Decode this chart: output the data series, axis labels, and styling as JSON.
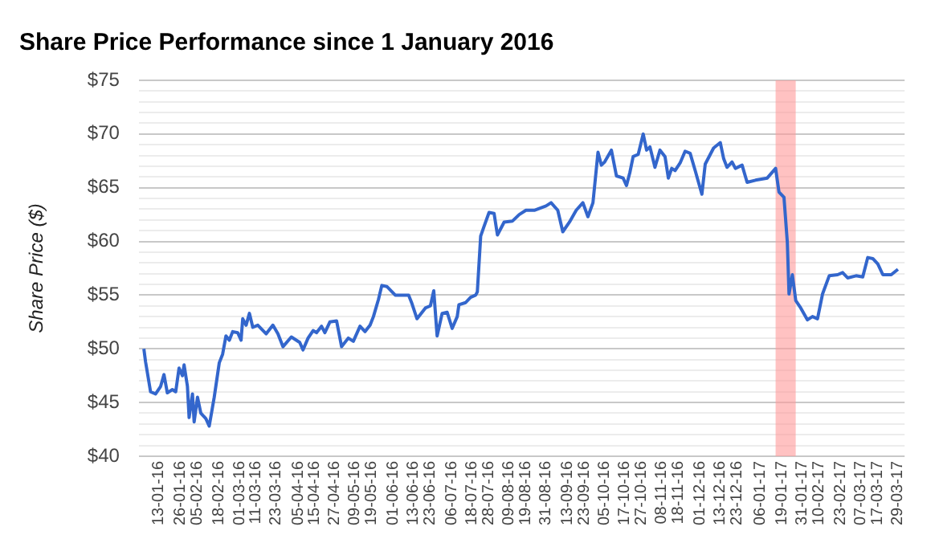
{
  "chart_data": {
    "type": "line",
    "title": "Share Price Performance since 1 January 2016",
    "ylabel": "Share Price ($)",
    "series": [
      {
        "color": "#3366cc",
        "x": [
          "2016-01-04",
          "2016-01-05",
          "2016-01-08",
          "2016-01-11",
          "2016-01-14",
          "2016-01-16",
          "2016-01-18",
          "2016-01-21",
          "2016-01-23",
          "2016-01-25",
          "2016-01-27",
          "2016-01-28",
          "2016-01-30",
          "2016-01-31",
          "2016-02-02",
          "2016-02-03",
          "2016-02-05",
          "2016-02-07",
          "2016-02-10",
          "2016-02-12",
          "2016-02-15",
          "2016-02-18",
          "2016-02-20",
          "2016-02-22",
          "2016-02-24",
          "2016-02-26",
          "2016-02-29",
          "2016-03-02",
          "2016-03-03",
          "2016-03-05",
          "2016-03-07",
          "2016-03-09",
          "2016-03-12",
          "2016-03-17",
          "2016-03-21",
          "2016-03-24",
          "2016-03-27",
          "2016-04-01",
          "2016-04-06",
          "2016-04-08",
          "2016-04-11",
          "2016-04-14",
          "2016-04-16",
          "2016-04-19",
          "2016-04-21",
          "2016-04-24",
          "2016-04-28",
          "2016-05-01",
          "2016-05-05",
          "2016-05-08",
          "2016-05-12",
          "2016-05-15",
          "2016-05-18",
          "2016-05-20",
          "2016-05-23",
          "2016-05-25",
          "2016-05-28",
          "2016-06-02",
          "2016-06-10",
          "2016-06-12",
          "2016-06-15",
          "2016-06-17",
          "2016-06-20",
          "2016-06-23",
          "2016-06-25",
          "2016-06-27",
          "2016-06-30",
          "2016-07-03",
          "2016-07-06",
          "2016-07-09",
          "2016-07-10",
          "2016-07-14",
          "2016-07-17",
          "2016-07-20",
          "2016-07-21",
          "2016-07-23",
          "2016-07-25",
          "2016-07-28",
          "2016-07-31",
          "2016-08-02",
          "2016-08-06",
          "2016-08-11",
          "2016-08-15",
          "2016-08-19",
          "2016-08-24",
          "2016-08-31",
          "2016-09-03",
          "2016-09-07",
          "2016-09-10",
          "2016-09-14",
          "2016-09-18",
          "2016-09-22",
          "2016-09-25",
          "2016-09-28",
          "2016-10-01",
          "2016-10-03",
          "2016-10-05",
          "2016-10-09",
          "2016-10-12",
          "2016-10-16",
          "2016-10-18",
          "2016-10-20",
          "2016-10-22",
          "2016-10-25",
          "2016-10-28",
          "2016-10-30",
          "2016-11-01",
          "2016-11-04",
          "2016-11-07",
          "2016-11-10",
          "2016-11-12",
          "2016-11-14",
          "2016-11-16",
          "2016-11-19",
          "2016-11-22",
          "2016-11-25",
          "2016-11-28",
          "2016-12-02",
          "2016-12-04",
          "2016-12-09",
          "2016-12-13",
          "2016-12-15",
          "2016-12-17",
          "2016-12-20",
          "2016-12-22",
          "2016-12-26",
          "2016-12-29",
          "2017-01-03",
          "2017-01-10",
          "2017-01-15",
          "2017-01-17",
          "2017-01-20",
          "2017-01-22",
          "2017-01-23",
          "2017-01-25",
          "2017-01-27",
          "2017-01-30",
          "2017-02-03",
          "2017-02-06",
          "2017-02-09",
          "2017-02-12",
          "2017-02-16",
          "2017-02-21",
          "2017-02-24",
          "2017-02-27",
          "2017-03-04",
          "2017-03-08",
          "2017-03-11",
          "2017-03-14",
          "2017-03-17",
          "2017-03-20",
          "2017-03-25",
          "2017-03-29"
        ],
        "values": [
          50.0,
          48.8,
          46.0,
          45.8,
          46.5,
          47.6,
          45.9,
          46.2,
          46.0,
          48.2,
          47.5,
          48.5,
          46.5,
          43.6,
          45.8,
          43.2,
          45.5,
          44.0,
          43.5,
          42.8,
          45.5,
          48.7,
          49.5,
          51.2,
          50.8,
          51.6,
          51.5,
          50.8,
          52.8,
          52.2,
          53.3,
          52.0,
          52.2,
          51.4,
          52.2,
          51.4,
          50.2,
          51.1,
          50.6,
          49.9,
          51.0,
          51.7,
          51.5,
          52.1,
          51.5,
          52.5,
          52.6,
          50.2,
          51.0,
          50.7,
          52.1,
          51.6,
          52.2,
          53.0,
          54.6,
          55.9,
          55.8,
          55.0,
          55.0,
          54.2,
          52.8,
          53.2,
          53.8,
          54.0,
          55.4,
          51.2,
          53.3,
          53.4,
          51.9,
          53.0,
          54.1,
          54.3,
          54.8,
          55.0,
          55.3,
          60.5,
          61.4,
          62.7,
          62.6,
          60.6,
          61.8,
          61.9,
          62.5,
          62.9,
          62.9,
          63.3,
          63.6,
          62.9,
          60.9,
          61.8,
          62.9,
          63.6,
          62.3,
          63.6,
          68.3,
          67.1,
          67.4,
          68.5,
          66.1,
          65.9,
          65.2,
          66.4,
          67.9,
          68.1,
          70.0,
          68.5,
          68.8,
          66.9,
          68.5,
          67.9,
          65.9,
          66.8,
          66.6,
          67.3,
          68.4,
          68.2,
          66.6,
          64.4,
          67.2,
          68.7,
          69.2,
          67.7,
          66.9,
          67.4,
          66.8,
          67.1,
          65.5,
          65.7,
          65.9,
          66.8,
          64.6,
          64.1,
          59.9,
          55.1,
          56.9,
          54.5,
          53.8,
          52.7,
          53.0,
          52.8,
          55.1,
          56.8,
          56.9,
          57.1,
          56.6,
          56.8,
          56.7,
          58.5,
          58.4,
          57.9,
          56.9,
          56.9,
          57.4
        ]
      }
    ],
    "xlim": [
      "2016-01-01",
      "2017-04-02"
    ],
    "xticks": [
      {
        "value": "2016-01-13",
        "label": "13-01-16"
      },
      {
        "value": "2016-01-26",
        "label": "26-01-16"
      },
      {
        "value": "2016-02-05",
        "label": "05-02-16"
      },
      {
        "value": "2016-02-18",
        "label": "18-02-16"
      },
      {
        "value": "2016-03-01",
        "label": "01-03-16"
      },
      {
        "value": "2016-03-11",
        "label": "11-03-16"
      },
      {
        "value": "2016-03-23",
        "label": "23-03-16"
      },
      {
        "value": "2016-04-05",
        "label": "05-04-16"
      },
      {
        "value": "2016-04-15",
        "label": "15-04-16"
      },
      {
        "value": "2016-04-27",
        "label": "27-04-16"
      },
      {
        "value": "2016-05-09",
        "label": "09-05-16"
      },
      {
        "value": "2016-05-19",
        "label": "19-05-16"
      },
      {
        "value": "2016-06-01",
        "label": "01-06-16"
      },
      {
        "value": "2016-06-13",
        "label": "13-06-16"
      },
      {
        "value": "2016-06-23",
        "label": "23-06-16"
      },
      {
        "value": "2016-07-06",
        "label": "06-07-16"
      },
      {
        "value": "2016-07-18",
        "label": "18-07-16"
      },
      {
        "value": "2016-07-28",
        "label": "28-07-16"
      },
      {
        "value": "2016-08-09",
        "label": "09-08-16"
      },
      {
        "value": "2016-08-19",
        "label": "19-08-16"
      },
      {
        "value": "2016-08-31",
        "label": "31-08-16"
      },
      {
        "value": "2016-09-13",
        "label": "13-09-16"
      },
      {
        "value": "2016-09-23",
        "label": "23-09-16"
      },
      {
        "value": "2016-10-05",
        "label": "05-10-16"
      },
      {
        "value": "2016-10-17",
        "label": "17-10-16"
      },
      {
        "value": "2016-10-27",
        "label": "27-10-16"
      },
      {
        "value": "2016-11-08",
        "label": "08-11-16"
      },
      {
        "value": "2016-11-18",
        "label": "18-11-16"
      },
      {
        "value": "2016-12-01",
        "label": "01-12-16"
      },
      {
        "value": "2016-12-13",
        "label": "13-12-16"
      },
      {
        "value": "2016-12-23",
        "label": "23-12-16"
      },
      {
        "value": "2017-01-06",
        "label": "06-01-17"
      },
      {
        "value": "2017-01-19",
        "label": "19-01-17"
      },
      {
        "value": "2017-01-31",
        "label": "31-01-17"
      },
      {
        "value": "2017-02-10",
        "label": "10-02-17"
      },
      {
        "value": "2017-02-23",
        "label": "23-02-17"
      },
      {
        "value": "2017-03-07",
        "label": "07-03-17"
      },
      {
        "value": "2017-03-17",
        "label": "17-03-17"
      },
      {
        "value": "2017-03-29",
        "label": "29-03-17"
      }
    ],
    "ylim": [
      40,
      75
    ],
    "yticks": [
      {
        "value": 40,
        "label": "$40"
      },
      {
        "value": 41,
        "label": null
      },
      {
        "value": 42,
        "label": null
      },
      {
        "value": 43,
        "label": null
      },
      {
        "value": 44,
        "label": null
      },
      {
        "value": 45,
        "label": "$45"
      },
      {
        "value": 46,
        "label": null
      },
      {
        "value": 47,
        "label": null
      },
      {
        "value": 48,
        "label": null
      },
      {
        "value": 49,
        "label": null
      },
      {
        "value": 50,
        "label": "$50"
      },
      {
        "value": 51,
        "label": null
      },
      {
        "value": 52,
        "label": null
      },
      {
        "value": 53,
        "label": null
      },
      {
        "value": 54,
        "label": null
      },
      {
        "value": 55,
        "label": "$55"
      },
      {
        "value": 56,
        "label": null
      },
      {
        "value": 57,
        "label": null
      },
      {
        "value": 58,
        "label": null
      },
      {
        "value": 59,
        "label": null
      },
      {
        "value": 60,
        "label": "$60"
      },
      {
        "value": 61,
        "label": null
      },
      {
        "value": 62,
        "label": null
      },
      {
        "value": 63,
        "label": null
      },
      {
        "value": 64,
        "label": null
      },
      {
        "value": 65,
        "label": "$65"
      },
      {
        "value": 66,
        "label": null
      },
      {
        "value": 67,
        "label": null
      },
      {
        "value": 68,
        "label": null
      },
      {
        "value": 69,
        "label": null
      },
      {
        "value": 70,
        "label": "$70"
      },
      {
        "value": 71,
        "label": null
      },
      {
        "value": 72,
        "label": null
      },
      {
        "value": 73,
        "label": null
      },
      {
        "value": 74,
        "label": null
      },
      {
        "value": 75,
        "label": "$75"
      }
    ],
    "bands": [
      {
        "axis": "x",
        "from": "2017-01-15",
        "to": "2017-01-27",
        "color": "#ff9999"
      }
    ],
    "grid": "y",
    "legend": false,
    "marker": "none",
    "line_style": "solid"
  }
}
